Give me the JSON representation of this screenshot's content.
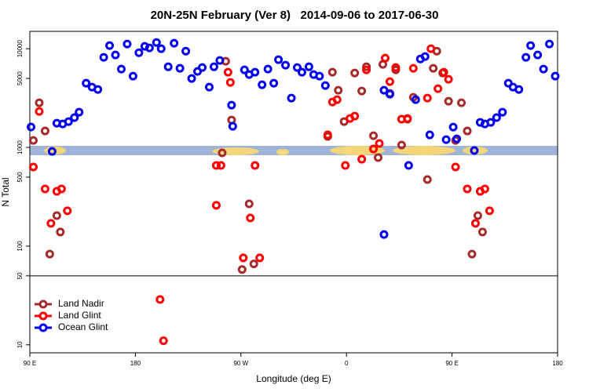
{
  "chart_data": {
    "type": "scatter",
    "title": "20N-25N February (Ver 8)   2014-09-06 to 2017-06-30",
    "x_label": "Longitude (deg E)",
    "y_label": "N Total",
    "log_y": true,
    "legend": "lower left",
    "reference_line": 50,
    "xlim": [
      90,
      540
    ],
    "xticks": [
      {
        "value": 90,
        "label": "90 E"
      },
      180,
      {
        "value": 270,
        "label": "90 W"
      },
      {
        "value": 360,
        "label": "0"
      },
      {
        "value": 450,
        "label": "90 E"
      },
      {
        "value": 540,
        "label": "180"
      }
    ],
    "ylim": [
      8.3,
      15000
    ],
    "yticks": [
      10,
      50,
      100,
      500,
      1000,
      5000,
      10000
    ],
    "series": [
      {
        "name": "Land Nadir",
        "color": "#a52a2a",
        "x": [
          93,
          98,
          103,
          107,
          113,
          116,
          254,
          257,
          262,
          271,
          277,
          281,
          344,
          348,
          353,
          358,
          367,
          373,
          377,
          383,
          387,
          391,
          397,
          402,
          407,
          412,
          417,
          429,
          434,
          437,
          442,
          447,
          453,
          458,
          463,
          467,
          472,
          476
        ],
        "values": [
          1178,
          2833,
          1468,
          83,
          204,
          139,
          880,
          7470,
          1896,
          58,
          268,
          66,
          1292,
          5780,
          3796,
          1828,
          5675,
          3727,
          6565,
          1315,
          789,
          6940,
          3530,
          6105,
          1057,
          1932,
          3222,
          473,
          6335,
          9460,
          5675,
          2938,
          1178,
          2833,
          1468,
          83,
          204,
          139
        ]
      },
      {
        "name": "Land Glint",
        "color": "#ff0000",
        "x": [
          93,
          98,
          103,
          108,
          113,
          117,
          122,
          201,
          204,
          249,
          249,
          253,
          259,
          261,
          272,
          278,
          282,
          286,
          344,
          348,
          352,
          359,
          363,
          367,
          373,
          377,
          383,
          388,
          393,
          397,
          402,
          407,
          412,
          417,
          429,
          432,
          438,
          443,
          447,
          453,
          463,
          470,
          474,
          478,
          482
        ],
        "values": [
          634,
          2317,
          380,
          170,
          359,
          380,
          228,
          28.8,
          11,
          657,
          259,
          657,
          5780,
          4560,
          76,
          193,
          657,
          76,
          1340,
          2884,
          3048,
          657,
          1967,
          2076,
          760,
          6105,
          964,
          1096,
          8030,
          4643,
          6450,
          1932,
          1967,
          6335,
          3162,
          10000,
          3936,
          5780,
          4900,
          634,
          380,
          170,
          359,
          380,
          228
        ]
      },
      {
        "name": "Ocean Glint",
        "color": "#0000ee",
        "x": [
          91,
          109,
          113,
          118,
          123,
          128,
          132,
          138,
          143,
          148,
          153,
          158,
          163,
          168,
          173,
          178,
          183,
          188,
          192,
          198,
          202,
          208,
          213,
          218,
          223,
          228,
          233,
          237,
          243,
          247,
          252,
          262,
          263,
          273,
          277,
          282,
          288,
          293,
          298,
          302,
          308,
          313,
          318,
          322,
          328,
          332,
          337,
          342,
          392,
          392,
          397,
          413,
          419,
          423,
          427,
          431,
          445,
          451,
          454,
          469,
          474,
          478,
          483,
          488,
          493,
          498,
          502,
          507,
          513,
          517,
          523,
          528,
          533,
          538
        ],
        "values": [
          1610,
          912,
          1762,
          1730,
          1828,
          2004,
          2277,
          4477,
          4083,
          3866,
          8180,
          10760,
          8646,
          6220,
          11160,
          5275,
          9120,
          10570,
          10190,
          11570,
          10000,
          6565,
          11370,
          6335,
          9460,
          4990,
          5890,
          6450,
          4083,
          6565,
          7600,
          2683,
          1638,
          6105,
          5470,
          5780,
          4315,
          6220,
          4477,
          7740,
          6810,
          3162,
          6450,
          5780,
          6565,
          5470,
          5275,
          4236,
          3796,
          131,
          3467,
          657,
          3048,
          7880,
          8330,
          1340,
          1200,
          1608,
          1222,
          930,
          1795,
          1730,
          1795,
          2004,
          2277,
          4477,
          4083,
          3866,
          8180,
          10760,
          8646,
          6220,
          11160,
          5275
        ]
      }
    ]
  }
}
